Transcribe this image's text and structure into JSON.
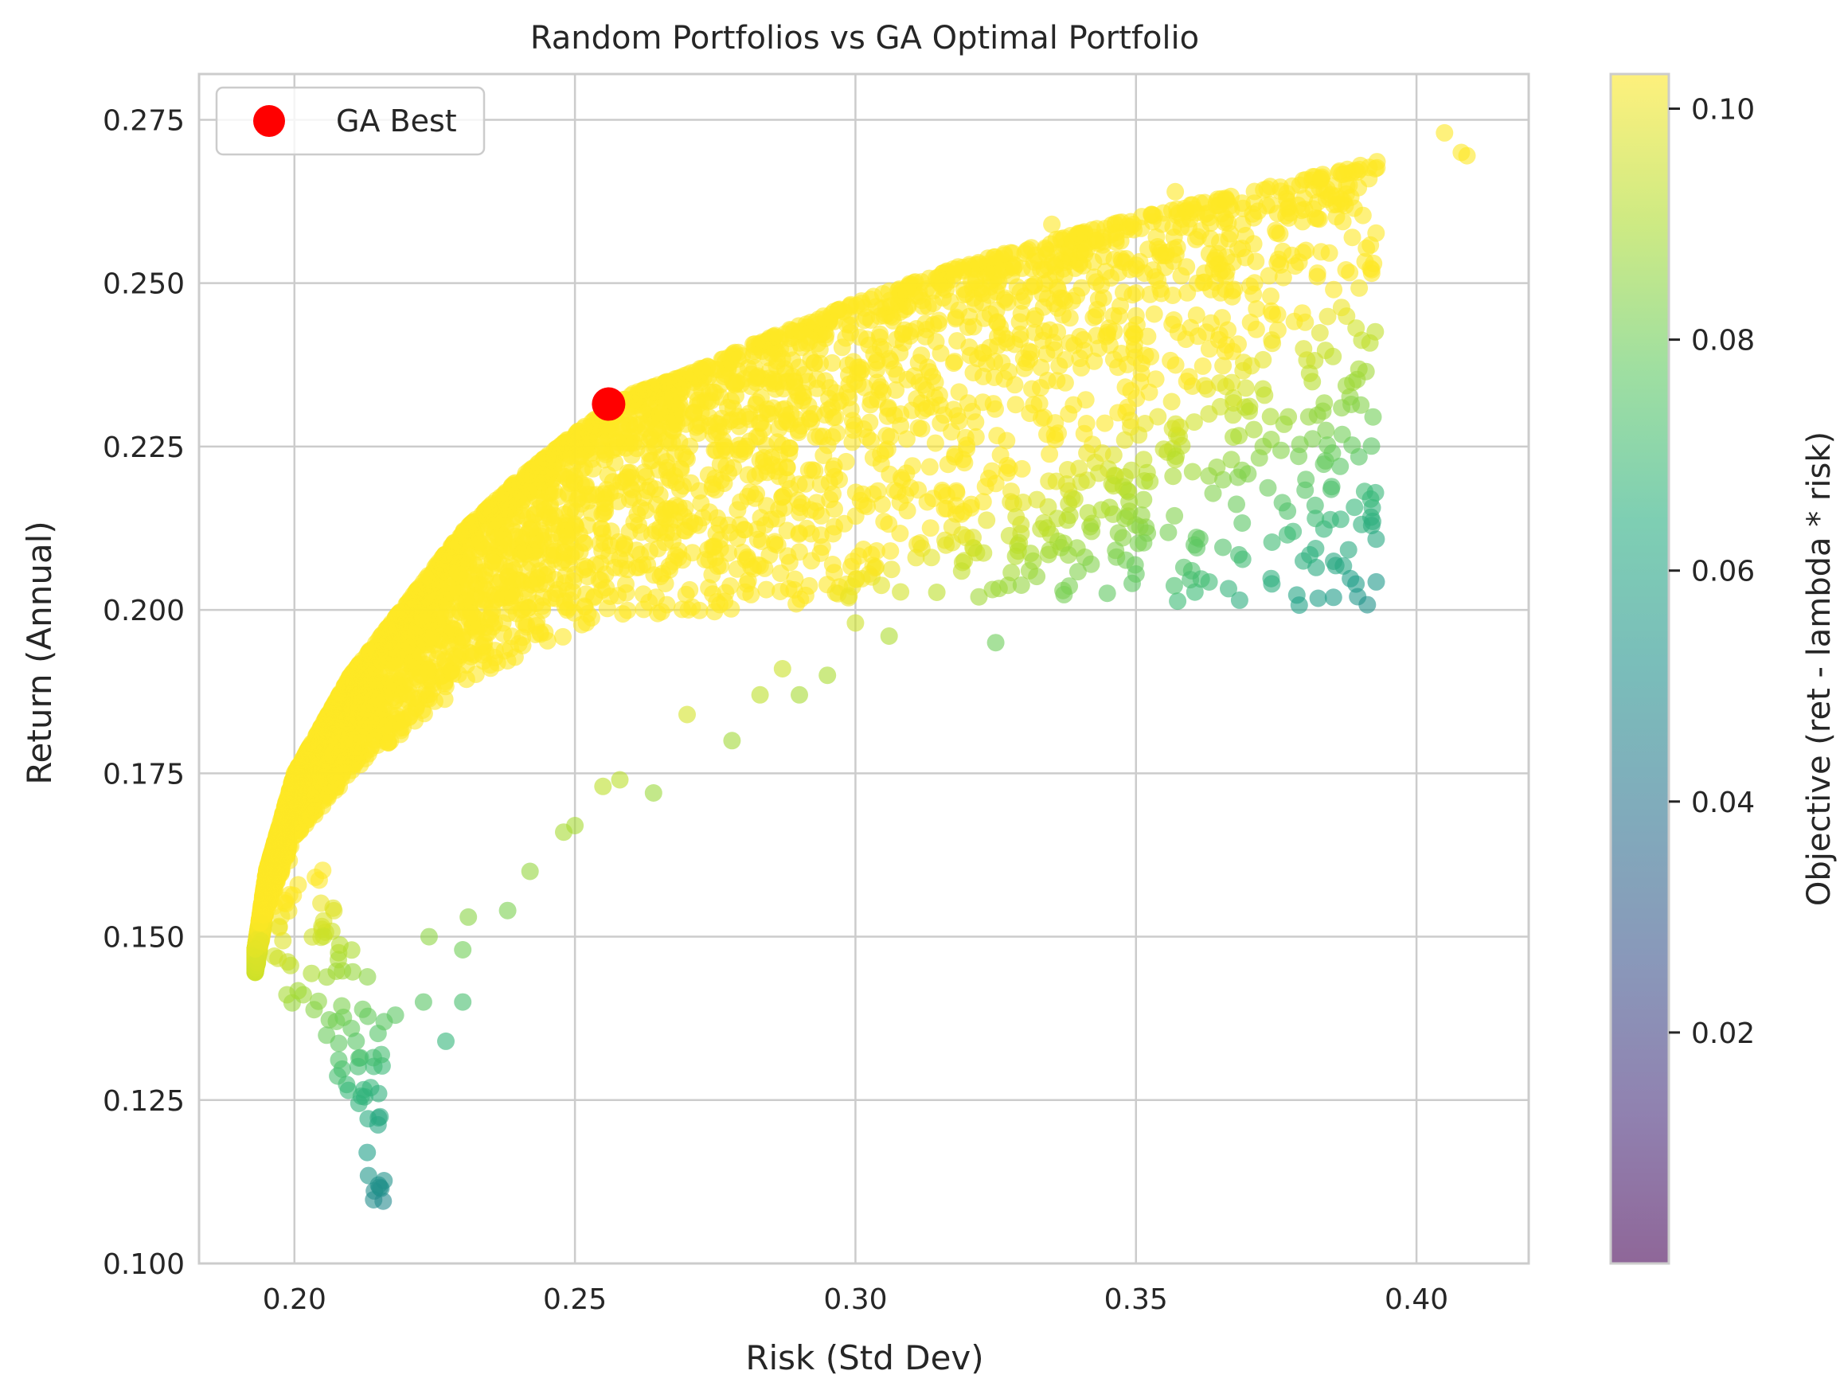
{
  "chart_data": {
    "type": "scatter",
    "title": "Random Portfolios vs GA Optimal Portfolio",
    "xlabel": "Risk (Std Dev)",
    "ylabel": "Return (Annual)",
    "xlim": [
      0.183,
      0.42
    ],
    "ylim": [
      0.1,
      0.282
    ],
    "x_ticks": [
      0.2,
      0.25,
      0.3,
      0.35,
      0.4
    ],
    "x_tick_labels": [
      "0.20",
      "0.25",
      "0.30",
      "0.35",
      "0.40"
    ],
    "y_ticks": [
      0.1,
      0.125,
      0.15,
      0.175,
      0.2,
      0.225,
      0.25,
      0.275
    ],
    "y_tick_labels": [
      "0.100",
      "0.125",
      "0.150",
      "0.175",
      "0.200",
      "0.225",
      "0.250",
      "0.275"
    ],
    "grid": true,
    "legend": {
      "position": "upper-left",
      "entries": [
        "GA Best"
      ]
    },
    "colorbar": {
      "label": "Objective (ret - lambda * risk)",
      "colormap": "viridis",
      "range": [
        0.0,
        0.103
      ],
      "ticks": [
        0.02,
        0.04,
        0.06,
        0.08,
        0.1
      ],
      "tick_labels": [
        "0.02",
        "0.04",
        "0.06",
        "0.08",
        "0.10"
      ]
    },
    "series": [
      {
        "name": "GA Best",
        "color": "#ff0000",
        "points": [
          [
            0.256,
            0.2315
          ]
        ]
      }
    ],
    "random_portfolios": {
      "marker_alpha": 0.6,
      "objective_lambda": 0.5,
      "frontier": [
        [
          0.193,
          0.148
        ],
        [
          0.195,
          0.16
        ],
        [
          0.2,
          0.175
        ],
        [
          0.21,
          0.19
        ],
        [
          0.22,
          0.201
        ],
        [
          0.23,
          0.212
        ],
        [
          0.24,
          0.22
        ],
        [
          0.25,
          0.227
        ],
        [
          0.26,
          0.233
        ],
        [
          0.27,
          0.236
        ],
        [
          0.28,
          0.24
        ],
        [
          0.3,
          0.247
        ],
        [
          0.32,
          0.253
        ],
        [
          0.35,
          0.26
        ],
        [
          0.39,
          0.268
        ],
        [
          0.41,
          0.272
        ]
      ],
      "lower_boundary": [
        [
          0.196,
          0.14
        ],
        [
          0.205,
          0.133
        ],
        [
          0.212,
          0.12
        ],
        [
          0.214,
          0.108
        ]
      ],
      "outliers": [
        [
          0.405,
          0.273
        ],
        [
          0.408,
          0.27
        ],
        [
          0.409,
          0.2695
        ],
        [
          0.378,
          0.212
        ],
        [
          0.382,
          0.214
        ],
        [
          0.385,
          0.224
        ],
        [
          0.379,
          0.2235
        ],
        [
          0.367,
          0.223
        ],
        [
          0.363,
          0.23
        ],
        [
          0.363,
          0.2205
        ],
        [
          0.357,
          0.223
        ],
        [
          0.352,
          0.221
        ],
        [
          0.351,
          0.2145
        ],
        [
          0.35,
          0.2055
        ],
        [
          0.349,
          0.229
        ],
        [
          0.348,
          0.226
        ],
        [
          0.346,
          0.219
        ],
        [
          0.344,
          0.224
        ],
        [
          0.342,
          0.207
        ],
        [
          0.338,
          0.23
        ],
        [
          0.336,
          0.214
        ],
        [
          0.325,
          0.195
        ],
        [
          0.322,
          0.202
        ],
        [
          0.331,
          0.206
        ],
        [
          0.329,
          0.209
        ],
        [
          0.333,
          0.234
        ],
        [
          0.327,
          0.221
        ],
        [
          0.319,
          0.2115
        ],
        [
          0.306,
          0.196
        ],
        [
          0.3,
          0.198
        ],
        [
          0.295,
          0.19
        ],
        [
          0.29,
          0.187
        ],
        [
          0.287,
          0.191
        ],
        [
          0.283,
          0.187
        ],
        [
          0.278,
          0.18
        ],
        [
          0.27,
          0.184
        ],
        [
          0.264,
          0.172
        ],
        [
          0.258,
          0.174
        ],
        [
          0.255,
          0.173
        ],
        [
          0.25,
          0.167
        ],
        [
          0.248,
          0.166
        ],
        [
          0.242,
          0.16
        ],
        [
          0.238,
          0.154
        ],
        [
          0.231,
          0.153
        ],
        [
          0.23,
          0.148
        ],
        [
          0.23,
          0.14
        ],
        [
          0.227,
          0.134
        ],
        [
          0.223,
          0.14
        ],
        [
          0.224,
          0.15
        ],
        [
          0.218,
          0.138
        ],
        [
          0.216,
          0.137
        ],
        [
          0.211,
          0.134
        ],
        [
          0.215,
          0.126
        ],
        [
          0.215,
          0.112
        ],
        [
          0.366,
          0.251
        ],
        [
          0.364,
          0.2535
        ],
        [
          0.359,
          0.2525
        ],
        [
          0.353,
          0.252
        ],
        [
          0.35,
          0.245
        ],
        [
          0.346,
          0.245
        ],
        [
          0.343,
          0.242
        ],
        [
          0.34,
          0.2385
        ],
        [
          0.336,
          0.2425
        ],
        [
          0.339,
          0.2405
        ],
        [
          0.33,
          0.2385
        ],
        [
          0.357,
          0.264
        ],
        [
          0.366,
          0.263
        ],
        [
          0.383,
          0.266
        ],
        [
          0.39,
          0.268
        ],
        [
          0.388,
          0.265
        ],
        [
          0.387,
          0.2625
        ],
        [
          0.377,
          0.2625
        ],
        [
          0.38,
          0.263
        ],
        [
          0.374,
          0.262
        ],
        [
          0.371,
          0.26
        ],
        [
          0.369,
          0.259
        ],
        [
          0.335,
          0.259
        ]
      ]
    }
  }
}
